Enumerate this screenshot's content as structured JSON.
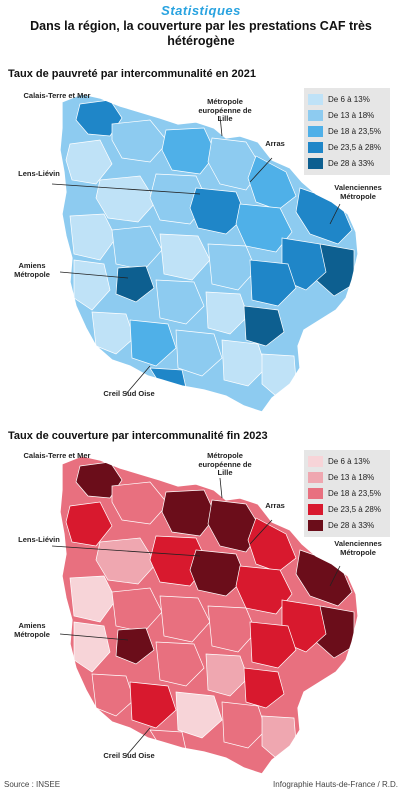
{
  "kicker": "Statistiques",
  "headline": "Dans la région, la couverture par les prestations CAF très hétérogène",
  "maps": [
    {
      "title": "Taux de pauvreté par intercommunalité en 2021",
      "palette": [
        "#bfe2f7",
        "#8dcbf0",
        "#4fb0e8",
        "#1f86c8",
        "#0d5f90"
      ],
      "legend": [
        "De 6 à 13%",
        "De 13 à 18%",
        "De 18 à 23,5%",
        "De 23,5 à 28%",
        "De 28 à 33%"
      ],
      "places": {
        "calais": "Calais-Terre et Mer",
        "lille": "Métropole européenne de Lille",
        "lens": "Lens-Liévin",
        "arras": "Arras",
        "valenciennes": "Valenciennes Métropole",
        "amiens": "Amiens Métropole",
        "creil": "Creil Sud Oise"
      }
    },
    {
      "title": "Taux de couverture par intercommunalité fin 2023",
      "palette": [
        "#f7d4d8",
        "#efa7b0",
        "#e8707f",
        "#d8192e",
        "#6b0d1a"
      ],
      "legend": [
        "De 6 à 13%",
        "De 13 à 18%",
        "De 18 à 23,5%",
        "De 23,5 à 28%",
        "De 28 à 33%"
      ],
      "places": {
        "calais": "Calais-Terre et Mer",
        "lille": "Métropole européenne de Lille",
        "lens": "Lens-Liévin",
        "arras": "Arras",
        "valenciennes": "Valenciennes Métropole",
        "amiens": "Amiens Métropole",
        "creil": "Creil Sud Oise"
      }
    }
  ],
  "footer": {
    "source": "Source : INSEE",
    "credit": "Infographie Hauts-de-France / R.D."
  }
}
